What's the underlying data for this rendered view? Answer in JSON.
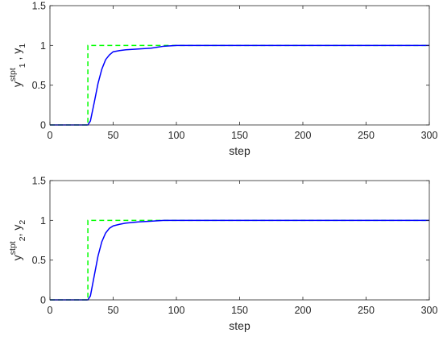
{
  "chart_data": [
    {
      "type": "line",
      "xlabel": "step",
      "ylabel": {
        "base": "y",
        "sub": "1",
        "sup": "stpt",
        "sep": " , ",
        "base2": "y",
        "sub2": "1"
      },
      "xlim": [
        0,
        300
      ],
      "ylim": [
        0,
        1.5
      ],
      "xticks": [
        "0",
        "50",
        "100",
        "150",
        "200",
        "250",
        "300"
      ],
      "yticks": [
        "0",
        "0.5",
        "1",
        "1.5"
      ],
      "series": [
        {
          "style": "dashed",
          "color": "#00ff00",
          "x": [
            0,
            30,
            30,
            300
          ],
          "y": [
            0,
            0,
            1,
            1
          ]
        },
        {
          "style": "solid",
          "color": "#0000ff",
          "x": [
            0,
            30,
            32,
            35,
            38,
            41,
            44,
            47,
            50,
            55,
            60,
            70,
            80,
            90,
            100,
            150,
            200,
            250,
            300
          ],
          "y": [
            0,
            0,
            0.05,
            0.28,
            0.52,
            0.7,
            0.82,
            0.88,
            0.92,
            0.935,
            0.945,
            0.955,
            0.965,
            0.99,
            1.0,
            1.0,
            1.0,
            1.0,
            1.0
          ]
        }
      ]
    },
    {
      "type": "line",
      "xlabel": "step",
      "ylabel": {
        "base": "y",
        "sub": "2",
        "sup": "stpt",
        "sep": ", ",
        "base2": "y",
        "sub2": "2"
      },
      "xlim": [
        0,
        300
      ],
      "ylim": [
        0,
        1.5
      ],
      "xticks": [
        "0",
        "50",
        "100",
        "150",
        "200",
        "250",
        "300"
      ],
      "yticks": [
        "0",
        "0.5",
        "1",
        "1.5"
      ],
      "series": [
        {
          "style": "dashed",
          "color": "#00ff00",
          "x": [
            0,
            30,
            30,
            300
          ],
          "y": [
            0,
            0,
            1,
            1
          ]
        },
        {
          "style": "solid",
          "color": "#0000ff",
          "x": [
            0,
            30,
            32,
            35,
            38,
            41,
            44,
            47,
            50,
            55,
            60,
            70,
            80,
            90,
            100,
            150,
            200,
            250,
            300
          ],
          "y": [
            0,
            0,
            0.05,
            0.3,
            0.55,
            0.73,
            0.84,
            0.9,
            0.93,
            0.95,
            0.965,
            0.98,
            0.99,
            1.0,
            1.0,
            1.0,
            1.0,
            1.0,
            1.0
          ]
        }
      ]
    }
  ]
}
